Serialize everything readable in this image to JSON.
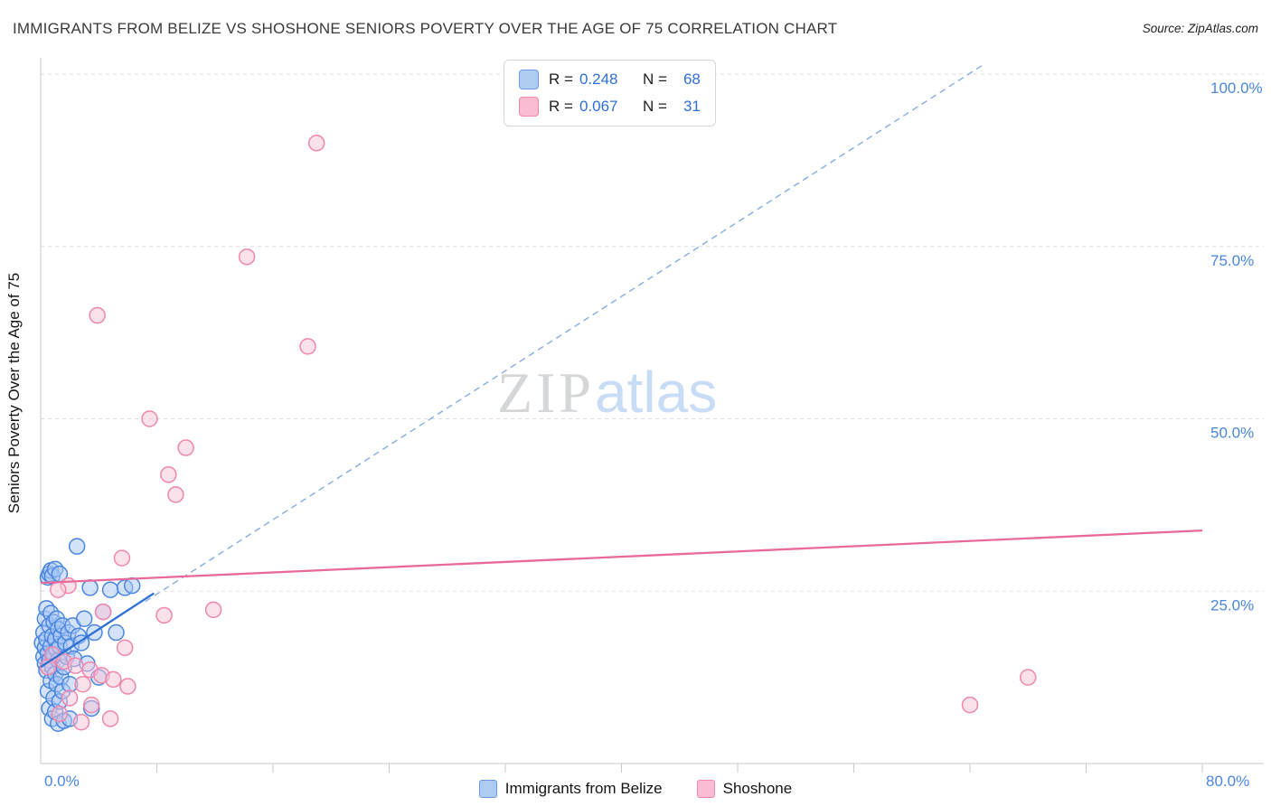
{
  "header": {
    "title": "IMMIGRANTS FROM BELIZE VS SHOSHONE SENIORS POVERTY OVER THE AGE OF 75 CORRELATION CHART",
    "source": "Source: ZipAtlas.com"
  },
  "watermark": {
    "zip": "ZIP",
    "atlas": "atlas"
  },
  "legend": {
    "r_label": "R =",
    "n_label": "N =",
    "rows": [
      {
        "r": "0.248",
        "n": "68",
        "swatch": {
          "fill": "#aecbf2",
          "stroke": "#6b9ce0"
        }
      },
      {
        "r": "0.067",
        "n": "31",
        "swatch": {
          "fill": "#f9bcd2",
          "stroke": "#ef87ad"
        }
      }
    ]
  },
  "footer": {
    "items": [
      {
        "label": "Immigrants from Belize",
        "swatch": {
          "fill": "#aecbf2",
          "stroke": "#6b9ce0"
        }
      },
      {
        "label": "Shoshone",
        "swatch": {
          "fill": "#f9bcd2",
          "stroke": "#ef87ad"
        }
      }
    ]
  },
  "chart_data": {
    "type": "scatter",
    "ylabel": "Seniors Poverty Over the Age of 75",
    "xlabel": "",
    "xlim": [
      0,
      0.8
    ],
    "ylim": [
      0,
      1.0
    ],
    "grid": true,
    "legend_position": "bottom",
    "x_tick_values": [
      0.08,
      0.16,
      0.24,
      0.32,
      0.4,
      0.48,
      0.56,
      0.64,
      0.72,
      0.8
    ],
    "x_labels": [
      {
        "value": 0,
        "label": "0.0%"
      },
      {
        "value": 0.8,
        "label": "80.0%"
      }
    ],
    "y_ticks": [
      {
        "value": 1.0,
        "label": "100.0%"
      },
      {
        "value": 0.75,
        "label": "75.0%"
      },
      {
        "value": 0.5,
        "label": "50.0%"
      },
      {
        "value": 0.25,
        "label": "25.0%"
      }
    ],
    "diagonal": {
      "x1": 0.072,
      "y1": 0.235,
      "x2": 0.648,
      "y2": 1.012
    },
    "series": [
      {
        "id": "belize",
        "name": "Immigrants from Belize",
        "R": 0.248,
        "N": 68,
        "marker": {
          "fill": "#a9c8f3",
          "stroke": "#4a86e0"
        },
        "line": "#2e6fd4",
        "trend": {
          "x1": 0,
          "y1": 0.14,
          "x2": 0.078,
          "y2": 0.247
        },
        "points": [
          [
            0.001,
            0.175
          ],
          [
            0.002,
            0.155
          ],
          [
            0.002,
            0.19
          ],
          [
            0.003,
            0.145
          ],
          [
            0.003,
            0.168
          ],
          [
            0.003,
            0.21
          ],
          [
            0.004,
            0.135
          ],
          [
            0.004,
            0.18
          ],
          [
            0.004,
            0.225
          ],
          [
            0.005,
            0.105
          ],
          [
            0.005,
            0.16
          ],
          [
            0.005,
            0.27
          ],
          [
            0.006,
            0.08
          ],
          [
            0.006,
            0.15
          ],
          [
            0.006,
            0.2
          ],
          [
            0.006,
            0.275
          ],
          [
            0.007,
            0.12
          ],
          [
            0.007,
            0.17
          ],
          [
            0.007,
            0.218
          ],
          [
            0.007,
            0.28
          ],
          [
            0.008,
            0.065
          ],
          [
            0.008,
            0.14
          ],
          [
            0.008,
            0.185
          ],
          [
            0.008,
            0.272
          ],
          [
            0.009,
            0.095
          ],
          [
            0.009,
            0.158
          ],
          [
            0.009,
            0.205
          ],
          [
            0.01,
            0.075
          ],
          [
            0.01,
            0.13
          ],
          [
            0.01,
            0.18
          ],
          [
            0.01,
            0.282
          ],
          [
            0.011,
            0.115
          ],
          [
            0.011,
            0.165
          ],
          [
            0.011,
            0.21
          ],
          [
            0.012,
            0.058
          ],
          [
            0.012,
            0.15
          ],
          [
            0.012,
            0.195
          ],
          [
            0.013,
            0.09
          ],
          [
            0.013,
            0.17
          ],
          [
            0.013,
            0.275
          ],
          [
            0.014,
            0.125
          ],
          [
            0.014,
            0.185
          ],
          [
            0.015,
            0.105
          ],
          [
            0.015,
            0.2
          ],
          [
            0.016,
            0.062
          ],
          [
            0.016,
            0.14
          ],
          [
            0.017,
            0.175
          ],
          [
            0.018,
            0.155
          ],
          [
            0.019,
            0.19
          ],
          [
            0.02,
            0.115
          ],
          [
            0.021,
            0.17
          ],
          [
            0.022,
            0.2
          ],
          [
            0.023,
            0.152
          ],
          [
            0.025,
            0.315
          ],
          [
            0.026,
            0.185
          ],
          [
            0.028,
            0.175
          ],
          [
            0.03,
            0.21
          ],
          [
            0.032,
            0.145
          ],
          [
            0.034,
            0.255
          ],
          [
            0.035,
            0.08
          ],
          [
            0.037,
            0.19
          ],
          [
            0.04,
            0.125
          ],
          [
            0.043,
            0.22
          ],
          [
            0.048,
            0.252
          ],
          [
            0.052,
            0.19
          ],
          [
            0.058,
            0.255
          ],
          [
            0.063,
            0.258
          ],
          [
            0.02,
            0.065
          ]
        ]
      },
      {
        "id": "shoshone",
        "name": "Shoshone",
        "R": 0.067,
        "N": 31,
        "marker": {
          "fill": "#f8c3d6",
          "stroke": "#ef87ad"
        },
        "line": "#e8699a",
        "trend": {
          "x1": 0,
          "y1": 0.262,
          "x2": 0.8,
          "y2": 0.338
        },
        "points": [
          [
            0.19,
            0.9
          ],
          [
            0.142,
            0.735
          ],
          [
            0.039,
            0.65
          ],
          [
            0.184,
            0.605
          ],
          [
            0.075,
            0.5
          ],
          [
            0.1,
            0.458
          ],
          [
            0.088,
            0.419
          ],
          [
            0.093,
            0.39
          ],
          [
            0.056,
            0.298
          ],
          [
            0.019,
            0.258
          ],
          [
            0.012,
            0.252
          ],
          [
            0.119,
            0.223
          ],
          [
            0.085,
            0.215
          ],
          [
            0.043,
            0.22
          ],
          [
            0.058,
            0.168
          ],
          [
            0.008,
            0.158
          ],
          [
            0.016,
            0.148
          ],
          [
            0.024,
            0.142
          ],
          [
            0.034,
            0.136
          ],
          [
            0.042,
            0.128
          ],
          [
            0.05,
            0.122
          ],
          [
            0.029,
            0.115
          ],
          [
            0.06,
            0.112
          ],
          [
            0.035,
            0.085
          ],
          [
            0.013,
            0.072
          ],
          [
            0.048,
            0.065
          ],
          [
            0.028,
            0.06
          ],
          [
            0.68,
            0.125
          ],
          [
            0.64,
            0.085
          ],
          [
            0.005,
            0.14
          ],
          [
            0.02,
            0.095
          ]
        ]
      }
    ]
  }
}
